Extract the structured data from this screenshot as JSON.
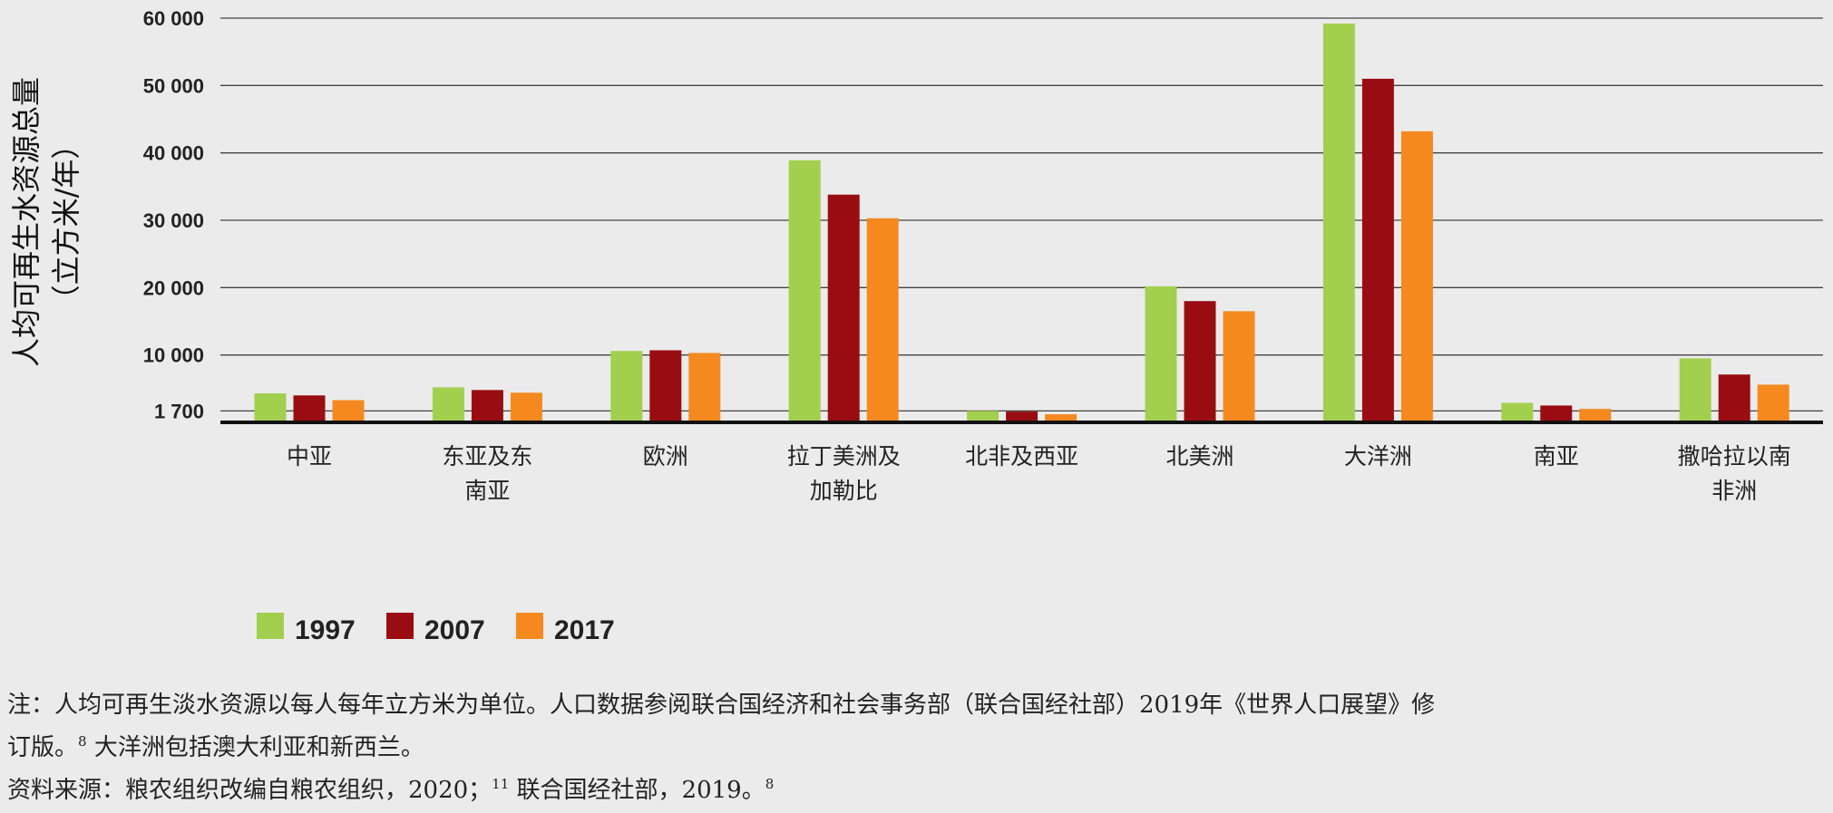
{
  "chart_data": {
    "type": "bar",
    "ylabel_line1": "人均可再生水资源总量",
    "ylabel_line2": "（立方米/年）",
    "yticks": [
      {
        "value": 1700,
        "label": "1 700"
      },
      {
        "value": 10000,
        "label": "10 000"
      },
      {
        "value": 20000,
        "label": "20 000"
      },
      {
        "value": 30000,
        "label": "30 000"
      },
      {
        "value": 40000,
        "label": "40 000"
      },
      {
        "value": 50000,
        "label": "50 000"
      },
      {
        "value": 60000,
        "label": "60 000"
      }
    ],
    "ylim": [
      0,
      60000
    ],
    "grid": true,
    "legend_position": "bottom-left",
    "categories": [
      [
        "中亚"
      ],
      [
        "东亚及东",
        "南亚"
      ],
      [
        "欧洲"
      ],
      [
        "拉丁美洲及",
        "加勒比"
      ],
      [
        "北非及西亚"
      ],
      [
        "北美洲"
      ],
      [
        "大洋洲"
      ],
      [
        "南亚"
      ],
      [
        "撒哈拉以南",
        "非洲"
      ]
    ],
    "series": [
      {
        "name": "1997",
        "color": "#a3cf4f",
        "values": [
          4300,
          5200,
          10600,
          38900,
          1700,
          20200,
          59200,
          2900,
          9500
        ]
      },
      {
        "name": "2007",
        "color": "#990d12",
        "values": [
          4000,
          4800,
          10700,
          33800,
          1600,
          18000,
          51000,
          2500,
          7100
        ]
      },
      {
        "name": "2017",
        "color": "#f5891f",
        "values": [
          3300,
          4400,
          10300,
          30300,
          1200,
          16500,
          43200,
          2000,
          5600
        ]
      }
    ]
  },
  "notes": {
    "note_line1": "注：人均可再生淡水资源以每人每年立方米为单位。人口数据参阅联合国经济和社会事务部（联合国经社部）2019年《世界人口展望》修",
    "note_line2_text": "订版。",
    "note_line2_sup": "8",
    "note_line2_rest": " 大洋洲包括澳大利亚和新西兰。",
    "source_text": "资料来源：粮农组织改编自粮农组织，2020；",
    "source_sup1": "11",
    "source_rest": " 联合国经社部，2019。",
    "source_sup2": "8"
  }
}
